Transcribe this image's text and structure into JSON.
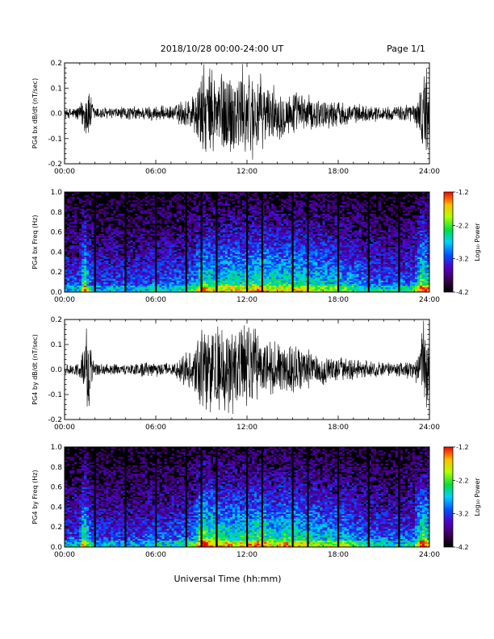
{
  "header": {
    "title": "2018/10/28  00:00-24:00 UT",
    "page": "Page 1/1"
  },
  "xlabel": "Universal Time (hh:mm)",
  "chart_data": [
    {
      "type": "line",
      "ylabel": "PG4 bx dB/dt (nT/sec)",
      "xlim": [
        0,
        24
      ],
      "ylim": [
        -0.2,
        0.2
      ],
      "xticks": [
        "00:00",
        "06:00",
        "12:00",
        "18:00",
        "24:00"
      ],
      "yticks": [
        "-0.2",
        "-0.1",
        "0.0",
        "0.1",
        "0.2"
      ],
      "color": "#000000",
      "envelope": {
        "x": [
          0,
          0.5,
          1,
          1.3,
          1.5,
          1.8,
          2,
          2.5,
          3,
          4,
          5,
          6,
          7,
          7.5,
          8,
          8.5,
          9,
          9.5,
          10,
          10.5,
          11,
          11.5,
          12,
          12.5,
          13,
          13.5,
          14,
          14.5,
          15,
          15.5,
          16,
          16.5,
          17,
          17.5,
          18,
          18.5,
          19,
          19.5,
          20,
          20.5,
          21,
          21.5,
          22,
          22.5,
          23,
          23.3,
          23.6,
          23.8,
          24
        ],
        "amp": [
          0.02,
          0.025,
          0.04,
          0.09,
          0.14,
          0.06,
          0.03,
          0.03,
          0.025,
          0.03,
          0.03,
          0.035,
          0.03,
          0.05,
          0.07,
          0.09,
          0.2,
          0.2,
          0.2,
          0.2,
          0.2,
          0.2,
          0.2,
          0.2,
          0.15,
          0.12,
          0.12,
          0.1,
          0.1,
          0.09,
          0.08,
          0.07,
          0.07,
          0.06,
          0.06,
          0.05,
          0.04,
          0.04,
          0.035,
          0.035,
          0.03,
          0.03,
          0.03,
          0.05,
          0.04,
          0.08,
          0.2,
          0.2,
          0.15
        ]
      }
    },
    {
      "type": "heatmap",
      "ylabel": "PG4 bx Freq (Hz)",
      "xlim": [
        0,
        24
      ],
      "ylim": [
        0,
        1.0
      ],
      "xticks": [
        "00:00",
        "06:00",
        "12:00",
        "18:00",
        "24:00"
      ],
      "yticks": [
        "0.0",
        "0.2",
        "0.4",
        "0.6",
        "0.8",
        "1.0"
      ],
      "colorbar": {
        "label": "Log₁₀ Power",
        "range": [
          -4.2,
          -1.2
        ],
        "ticks": [
          "-1.2",
          "-2.2",
          "-3.2",
          "-4.2"
        ]
      },
      "dark_stripes_hours": [
        2,
        4,
        6,
        8,
        9,
        10,
        12,
        13,
        15,
        16,
        18,
        20,
        22
      ],
      "activity": {
        "x": [
          0,
          1,
          1.3,
          1.6,
          2,
          3,
          4,
          5,
          6,
          7,
          8,
          8.5,
          9,
          9.5,
          10,
          11,
          12,
          12.5,
          13,
          13.5,
          14,
          14.5,
          15,
          16,
          17,
          18,
          19,
          20,
          21,
          22,
          23,
          23.5,
          24
        ],
        "level": [
          0.45,
          0.5,
          0.95,
          0.6,
          0.45,
          0.45,
          0.45,
          0.45,
          0.5,
          0.5,
          0.55,
          0.6,
          0.85,
          0.8,
          0.75,
          0.8,
          0.75,
          0.85,
          0.85,
          0.8,
          0.75,
          0.8,
          0.8,
          0.75,
          0.7,
          0.7,
          0.6,
          0.55,
          0.5,
          0.5,
          0.55,
          0.95,
          0.8
        ]
      }
    },
    {
      "type": "line",
      "ylabel": "PG4 by dB/dt (nT/sec)",
      "xlim": [
        0,
        24
      ],
      "ylim": [
        -0.2,
        0.2
      ],
      "xticks": [
        "00:00",
        "06:00",
        "12:00",
        "18:00",
        "24:00"
      ],
      "yticks": [
        "-0.2",
        "-0.1",
        "0.0",
        "0.1",
        "0.2"
      ],
      "color": "#000000",
      "envelope": {
        "x": [
          0,
          0.5,
          1,
          1.3,
          1.5,
          1.8,
          2,
          2.5,
          3,
          4,
          5,
          6,
          7,
          7.5,
          8,
          8.5,
          9,
          9.5,
          10,
          10.5,
          11,
          11.5,
          12,
          12.5,
          13,
          13.5,
          14,
          14.5,
          15,
          15.5,
          16,
          16.5,
          17,
          17.5,
          18,
          18.5,
          19,
          19.5,
          20,
          20.5,
          21,
          21.5,
          22,
          22.5,
          23,
          23.3,
          23.6,
          23.8,
          24
        ],
        "amp": [
          0.02,
          0.025,
          0.04,
          0.12,
          0.2,
          0.08,
          0.03,
          0.03,
          0.025,
          0.025,
          0.03,
          0.03,
          0.03,
          0.05,
          0.08,
          0.1,
          0.2,
          0.2,
          0.2,
          0.2,
          0.2,
          0.2,
          0.2,
          0.2,
          0.14,
          0.13,
          0.12,
          0.11,
          0.12,
          0.1,
          0.09,
          0.08,
          0.07,
          0.06,
          0.06,
          0.05,
          0.05,
          0.04,
          0.04,
          0.035,
          0.03,
          0.03,
          0.03,
          0.04,
          0.04,
          0.08,
          0.2,
          0.2,
          0.15
        ]
      }
    },
    {
      "type": "heatmap",
      "ylabel": "PG4 by Freq (Hz)",
      "xlim": [
        0,
        24
      ],
      "ylim": [
        0,
        1.0
      ],
      "xticks": [
        "00:00",
        "06:00",
        "12:00",
        "18:00",
        "24:00"
      ],
      "yticks": [
        "0.0",
        "0.2",
        "0.4",
        "0.6",
        "0.8",
        "1.0"
      ],
      "colorbar": {
        "label": "Log₁₀ Power",
        "range": [
          -4.2,
          -1.2
        ],
        "ticks": [
          "-1.2",
          "-2.2",
          "-3.2",
          "-4.2"
        ]
      },
      "dark_stripes_hours": [
        2,
        4,
        6,
        8,
        9,
        10,
        12,
        13,
        15,
        16,
        18,
        20,
        22
      ],
      "activity": {
        "x": [
          0,
          1,
          1.3,
          1.6,
          2,
          3,
          4,
          5,
          6,
          7,
          8,
          8.5,
          9,
          9.5,
          10,
          11,
          12,
          12.5,
          13,
          13.5,
          14,
          14.5,
          15,
          16,
          17,
          18,
          19,
          20,
          21,
          22,
          23,
          23.5,
          24
        ],
        "level": [
          0.45,
          0.5,
          0.95,
          0.6,
          0.45,
          0.45,
          0.45,
          0.45,
          0.5,
          0.5,
          0.55,
          0.6,
          0.95,
          0.9,
          0.85,
          0.8,
          0.8,
          0.85,
          0.85,
          0.8,
          0.75,
          0.85,
          0.8,
          0.75,
          0.7,
          0.7,
          0.6,
          0.55,
          0.5,
          0.5,
          0.55,
          0.95,
          0.8
        ]
      }
    }
  ]
}
